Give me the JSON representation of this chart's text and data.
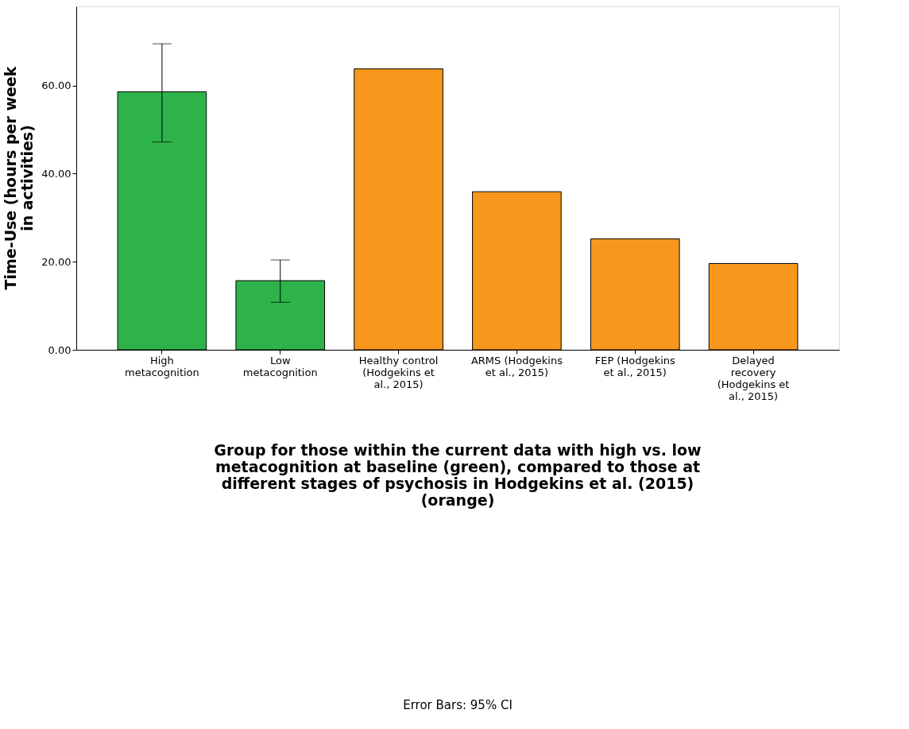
{
  "chart_data": {
    "type": "bar",
    "categories": [
      "High metacognition",
      "Low metacognition",
      "Healthy control (Hodgekins et al., 2015)",
      "ARMS (Hodgekins et al., 2015)",
      "FEP (Hodgekins et al., 2015)",
      "Delayed recovery (Hodgekins et al., 2015)"
    ],
    "values": [
      58.6,
      15.7,
      63.8,
      35.9,
      25.2,
      19.6
    ],
    "colors": [
      "#2db34a",
      "#2db34a",
      "#f7981d",
      "#f7981d",
      "#f7981d",
      "#f7981d"
    ],
    "errors": [
      [
        47.2,
        69.5
      ],
      [
        10.8,
        20.4
      ],
      null,
      null,
      null,
      null
    ],
    "ylim": [
      0,
      78
    ],
    "yticks": [
      {
        "value": 0,
        "label": "0.00"
      },
      {
        "value": 20,
        "label": "20.00"
      },
      {
        "value": 40,
        "label": "40.00"
      },
      {
        "value": 60,
        "label": "60.00"
      }
    ],
    "ylabel": "Time-Use (hours per week in activities)",
    "xlabel": "Group for those within the current data with high vs. low metacognition at baseline (green), compared to those at different stages of psychosis in Hodgekins et al. (2015) (orange)",
    "annotations": [
      "Error Bars: 95% CI"
    ],
    "grid": false
  }
}
